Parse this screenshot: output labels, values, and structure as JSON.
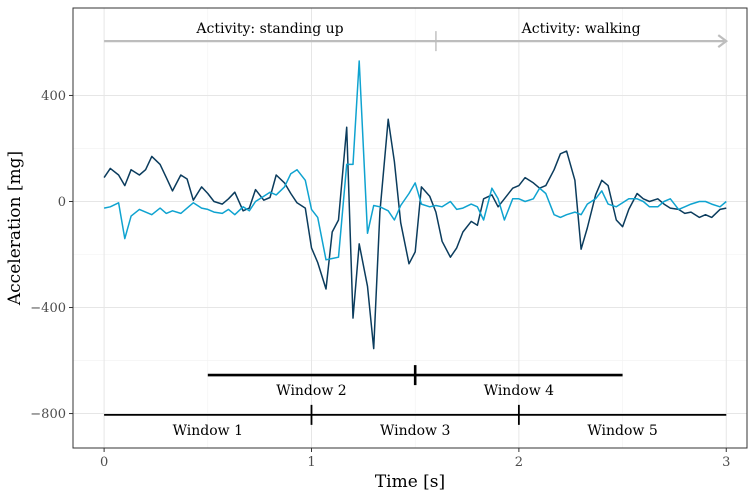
{
  "chart_data": {
    "type": "line",
    "title": "",
    "xlabel": "Time [s]",
    "ylabel": "Acceleration [mg]",
    "xlim": [
      -0.15,
      3.1
    ],
    "ylim": [
      -930,
      730
    ],
    "x_ticks": [
      0,
      1,
      2,
      3
    ],
    "x_tick_labels": [
      "0",
      "1",
      "2",
      "3"
    ],
    "y_ticks": [
      -800,
      -400,
      0,
      400
    ],
    "y_tick_labels": [
      "−800",
      "−400",
      "0",
      "400"
    ],
    "grid": true,
    "legend": "none",
    "colors": {
      "dark": "#0b3c5d",
      "light": "#0fa3d0",
      "activity_arrow": "#bdbdbd",
      "windows": "#000000"
    },
    "series": [
      {
        "color": "#0b3c5d",
        "x": [
          0,
          0.03,
          0.07,
          0.1,
          0.13,
          0.17,
          0.2,
          0.23,
          0.27,
          0.3,
          0.33,
          0.37,
          0.4,
          0.43,
          0.47,
          0.5,
          0.53,
          0.57,
          0.6,
          0.63,
          0.67,
          0.7,
          0.73,
          0.77,
          0.8,
          0.83,
          0.87,
          0.9,
          0.93,
          0.97,
          1.0,
          1.03,
          1.07,
          1.1,
          1.13,
          1.17,
          1.2,
          1.23,
          1.27,
          1.3,
          1.33,
          1.37,
          1.4,
          1.43,
          1.47,
          1.5,
          1.53,
          1.57,
          1.6,
          1.63,
          1.67,
          1.7,
          1.73,
          1.77,
          1.8,
          1.83,
          1.87,
          1.9,
          1.93,
          1.97,
          2.0,
          2.03,
          2.07,
          2.1,
          2.13,
          2.17,
          2.2,
          2.23,
          2.27,
          2.3,
          2.33,
          2.37,
          2.4,
          2.43,
          2.47,
          2.5,
          2.53,
          2.57,
          2.6,
          2.63,
          2.67,
          2.7,
          2.73,
          2.77,
          2.8,
          2.83,
          2.87,
          2.9,
          2.93,
          2.97,
          3.0
        ],
        "y": [
          90,
          125,
          100,
          60,
          120,
          100,
          120,
          170,
          140,
          90,
          40,
          100,
          85,
          5,
          55,
          30,
          0,
          -10,
          10,
          35,
          -35,
          -25,
          45,
          5,
          15,
          100,
          70,
          30,
          -5,
          -25,
          -175,
          -230,
          -330,
          -115,
          -70,
          280,
          -440,
          -160,
          -320,
          -555,
          -40,
          310,
          150,
          -80,
          -235,
          -190,
          55,
          20,
          -40,
          -150,
          -210,
          -175,
          -115,
          -75,
          -90,
          10,
          25,
          -20,
          10,
          50,
          60,
          90,
          70,
          50,
          60,
          120,
          180,
          190,
          80,
          -180,
          -100,
          25,
          80,
          60,
          -70,
          -95,
          -30,
          30,
          10,
          0,
          10,
          -10,
          -25,
          -30,
          -45,
          -40,
          -60,
          -50,
          -60,
          -30,
          -25
        ]
      },
      {
        "color": "#0fa3d0",
        "x": [
          0,
          0.03,
          0.07,
          0.1,
          0.13,
          0.17,
          0.2,
          0.23,
          0.27,
          0.3,
          0.33,
          0.37,
          0.4,
          0.43,
          0.47,
          0.5,
          0.53,
          0.57,
          0.6,
          0.63,
          0.67,
          0.7,
          0.73,
          0.77,
          0.8,
          0.83,
          0.87,
          0.9,
          0.93,
          0.97,
          1.0,
          1.03,
          1.07,
          1.1,
          1.13,
          1.17,
          1.2,
          1.23,
          1.27,
          1.3,
          1.33,
          1.37,
          1.4,
          1.43,
          1.47,
          1.5,
          1.53,
          1.57,
          1.6,
          1.63,
          1.67,
          1.7,
          1.73,
          1.77,
          1.8,
          1.83,
          1.87,
          1.9,
          1.93,
          1.97,
          2.0,
          2.03,
          2.07,
          2.1,
          2.13,
          2.17,
          2.2,
          2.23,
          2.27,
          2.3,
          2.33,
          2.37,
          2.4,
          2.43,
          2.47,
          2.5,
          2.53,
          2.57,
          2.6,
          2.63,
          2.67,
          2.7,
          2.73,
          2.77,
          2.8,
          2.83,
          2.87,
          2.9,
          2.93,
          2.97,
          3.0
        ],
        "y": [
          -25,
          -20,
          -5,
          -140,
          -55,
          -30,
          -40,
          -50,
          -25,
          -45,
          -35,
          -45,
          -25,
          -5,
          -25,
          -30,
          -40,
          -45,
          -30,
          -50,
          -20,
          -35,
          0,
          20,
          35,
          25,
          55,
          105,
          120,
          80,
          -30,
          -60,
          -220,
          -215,
          -210,
          140,
          140,
          530,
          -120,
          -15,
          -20,
          -35,
          -70,
          -15,
          30,
          70,
          -10,
          -20,
          -15,
          -20,
          0,
          -30,
          -25,
          -10,
          -20,
          -70,
          50,
          10,
          -70,
          10,
          10,
          0,
          10,
          50,
          30,
          -50,
          -60,
          -50,
          -40,
          -50,
          -10,
          10,
          40,
          -10,
          -20,
          -5,
          10,
          10,
          0,
          -20,
          -20,
          0,
          10,
          -30,
          -20,
          -10,
          0,
          0,
          -10,
          -20,
          0
        ]
      }
    ],
    "annotations": {
      "activity_left": "Activity: standing up",
      "activity_right": "Activity: walking",
      "activity_y": 605,
      "activity_x_start": 0,
      "activity_x_split": 1.6,
      "activity_x_end": 3,
      "windows": [
        {
          "label": "Window 1",
          "x_start": 0,
          "x_end": 1,
          "row": "lower"
        },
        {
          "label": "Window 2",
          "x_start": 0.5,
          "x_end": 1.5,
          "row": "upper"
        },
        {
          "label": "Window 3",
          "x_start": 1,
          "x_end": 2,
          "row": "lower"
        },
        {
          "label": "Window 4",
          "x_start": 1.5,
          "x_end": 2.5,
          "row": "upper"
        },
        {
          "label": "Window 5",
          "x_start": 2,
          "x_end": 3,
          "row": "lower"
        }
      ],
      "window_row_y": {
        "upper": -655,
        "lower": -805
      }
    }
  }
}
